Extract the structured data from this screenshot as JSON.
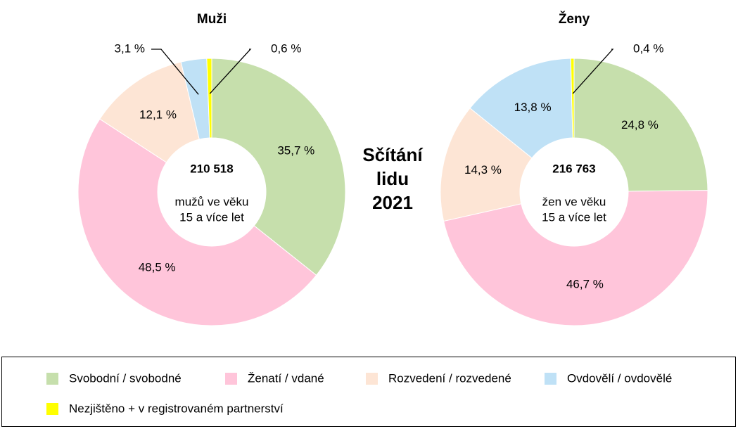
{
  "chart_data": [
    {
      "type": "donut",
      "title": "Muži",
      "categories": [
        "Svobodní / svobodné",
        "Ženatí / vdané",
        "Rozvedení / rozvedené",
        "Ovdovělí / ovdovělé",
        "Nezjištěno + v registrovaném partnerství"
      ],
      "values": [
        35.7,
        48.5,
        12.1,
        3.1,
        0.6
      ],
      "value_labels": [
        "35,7 %",
        "48,5 %",
        "12,1 %",
        "3,1 %",
        "0,6 %"
      ],
      "colors": [
        "#c6dfac",
        "#ffc5da",
        "#fde5d5",
        "#bfe1f6",
        "#ffff00"
      ],
      "center_text": [
        "210 518",
        "mužů ve věku",
        "15 a více let"
      ]
    },
    {
      "type": "donut",
      "title": "Ženy",
      "categories": [
        "Svobodní / svobodné",
        "Ženatí / vdané",
        "Rozvedení / rozvedené",
        "Ovdovělí / ovdovělé",
        "Nezjištěno + v registrovaném partnerství"
      ],
      "values": [
        24.8,
        46.7,
        14.3,
        13.8,
        0.4
      ],
      "value_labels": [
        "24,8 %",
        "46,7 %",
        "14,3 %",
        "13,8 %",
        "0,4 %"
      ],
      "colors": [
        "#c6dfac",
        "#ffc5da",
        "#fde5d5",
        "#bfe1f6",
        "#ffff00"
      ],
      "center_text": [
        "216 763",
        "žen ve věku",
        "15 a více let"
      ]
    }
  ],
  "annotation": [
    "Sčítání",
    "lidu",
    "2021"
  ]
}
